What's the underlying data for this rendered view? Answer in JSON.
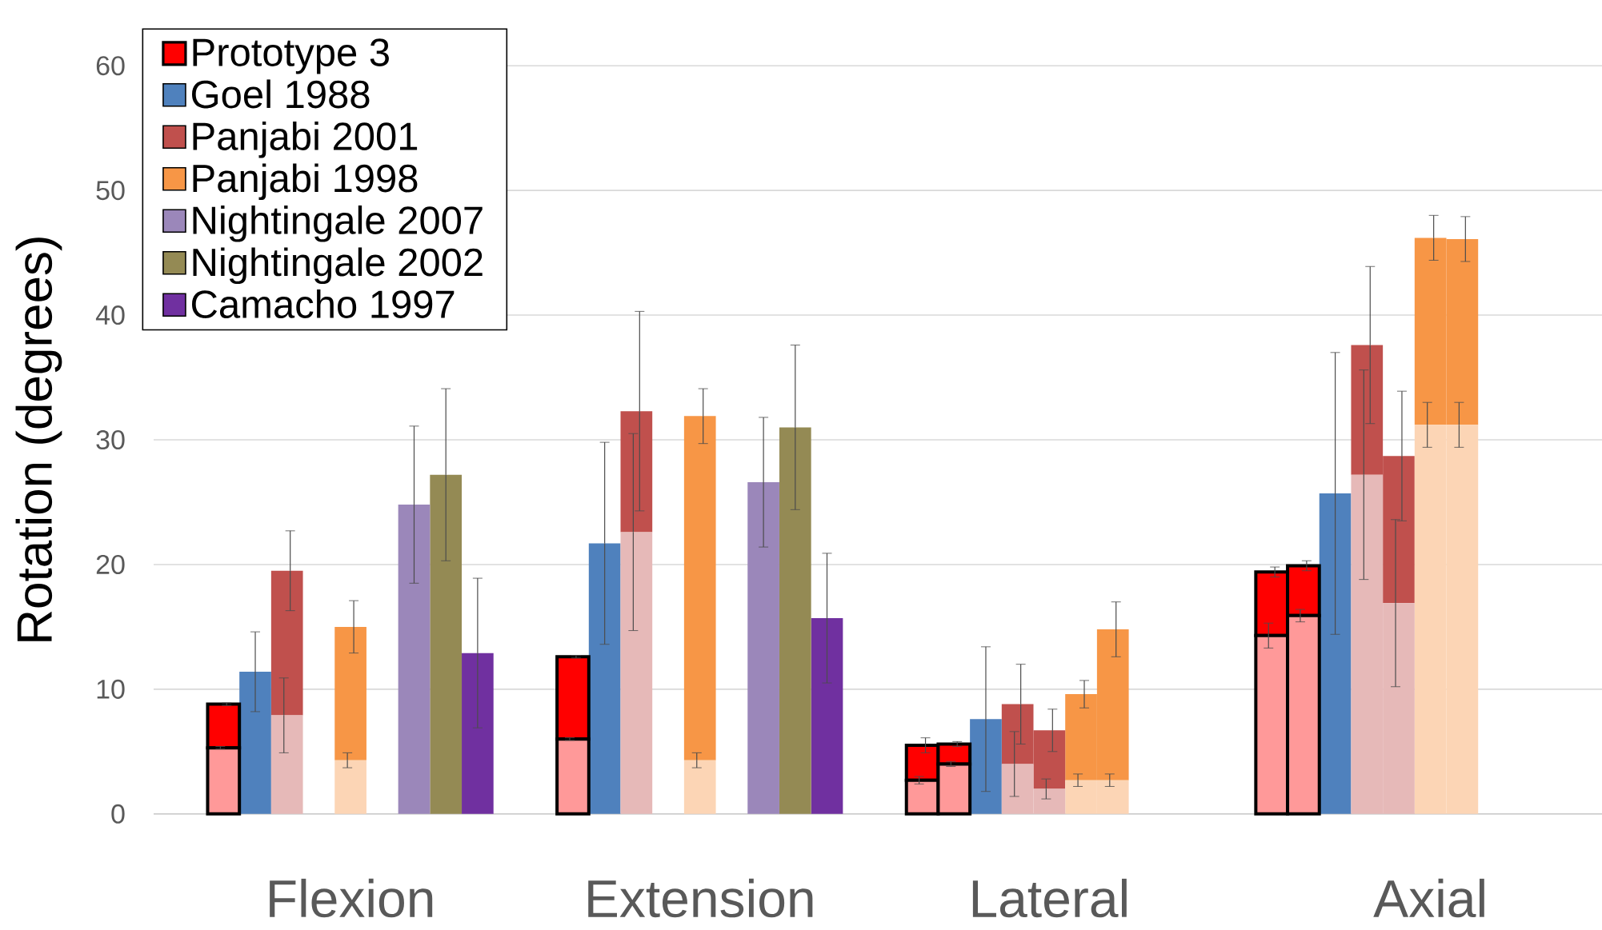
{
  "chart_data": {
    "type": "bar",
    "stacked": true,
    "ylabel": "Rotation (degrees)",
    "categories": [
      null,
      null,
      null,
      null,
      "Flexion",
      null,
      null,
      null,
      null,
      null,
      null,
      null,
      null,
      null,
      null,
      "Extension",
      null,
      null,
      null,
      null,
      null,
      null,
      null,
      null,
      null,
      null,
      "Lateral",
      null,
      null,
      null,
      null,
      null,
      null,
      null,
      null,
      null,
      null,
      null,
      "Axial",
      null
    ],
    "ylim": [
      0,
      60
    ],
    "yticks": [
      0,
      10,
      20,
      30,
      40,
      50,
      60
    ],
    "grid": "y",
    "legend": "top left",
    "series": [
      {
        "color": "#ff9999",
        "values": [
          5.3,
          null,
          null,
          null,
          null,
          null,
          null,
          null,
          null,
          null,
          null,
          6.0,
          null,
          null,
          null,
          null,
          null,
          null,
          null,
          null,
          null,
          null,
          2.7,
          4.0,
          null,
          null,
          null,
          null,
          null,
          null,
          null,
          null,
          null,
          14.3,
          15.9,
          null,
          null,
          null,
          null,
          null
        ],
        "errors": [
          0.1,
          null,
          null,
          null,
          null,
          null,
          null,
          null,
          null,
          null,
          null,
          0.1,
          null,
          null,
          null,
          null,
          null,
          null,
          null,
          null,
          null,
          null,
          0.3,
          0.2,
          null,
          null,
          null,
          null,
          null,
          null,
          null,
          null,
          null,
          1.0,
          0.5,
          null,
          null,
          null,
          null,
          null
        ]
      },
      {
        "color": "#e6b9b8",
        "values": [
          null,
          null,
          7.9,
          null,
          null,
          null,
          null,
          null,
          null,
          null,
          null,
          null,
          null,
          22.6,
          null,
          null,
          null,
          null,
          null,
          null,
          null,
          null,
          null,
          null,
          null,
          4.0,
          2.0,
          null,
          null,
          null,
          null,
          null,
          null,
          null,
          null,
          null,
          27.2,
          16.9,
          null,
          null
        ],
        "errors": [
          null,
          null,
          3.0,
          null,
          null,
          null,
          null,
          null,
          null,
          null,
          null,
          null,
          null,
          7.9,
          null,
          null,
          null,
          null,
          null,
          null,
          null,
          null,
          null,
          null,
          null,
          2.6,
          0.8,
          null,
          null,
          null,
          null,
          null,
          null,
          null,
          null,
          null,
          8.4,
          6.7,
          null,
          null
        ]
      },
      {
        "color": "#fcd5b5",
        "values": [
          null,
          null,
          null,
          null,
          4.3,
          null,
          null,
          null,
          null,
          null,
          null,
          null,
          null,
          null,
          null,
          4.3,
          null,
          null,
          null,
          null,
          null,
          null,
          null,
          null,
          null,
          null,
          null,
          2.7,
          2.7,
          null,
          null,
          null,
          null,
          null,
          null,
          null,
          null,
          null,
          31.2,
          31.2
        ],
        "errors": [
          null,
          null,
          null,
          null,
          0.6,
          null,
          null,
          null,
          null,
          null,
          null,
          null,
          null,
          null,
          null,
          0.6,
          null,
          null,
          null,
          null,
          null,
          null,
          null,
          null,
          null,
          null,
          null,
          0.5,
          0.5,
          null,
          null,
          null,
          null,
          null,
          null,
          null,
          null,
          null,
          1.8,
          1.8
        ]
      },
      {
        "name": "Prototype 3",
        "color": "#ff0000",
        "values": [
          3.5,
          null,
          null,
          null,
          null,
          null,
          null,
          null,
          null,
          null,
          null,
          6.6,
          null,
          null,
          null,
          null,
          null,
          null,
          null,
          null,
          null,
          null,
          2.8,
          1.6,
          null,
          null,
          null,
          null,
          null,
          null,
          null,
          null,
          null,
          5.1,
          4.0,
          null,
          null,
          null,
          null,
          null
        ],
        "errors": [
          0.1,
          null,
          null,
          null,
          null,
          null,
          null,
          null,
          null,
          null,
          null,
          0.1,
          null,
          null,
          null,
          null,
          null,
          null,
          null,
          null,
          null,
          null,
          0.6,
          0.2,
          null,
          null,
          null,
          null,
          null,
          null,
          null,
          null,
          null,
          0.4,
          0.4,
          null,
          null,
          null,
          null,
          null
        ]
      },
      {
        "name": "Goel 1988",
        "color": "#4f81bd",
        "values": [
          null,
          11.4,
          null,
          null,
          null,
          null,
          null,
          null,
          null,
          null,
          null,
          null,
          21.7,
          null,
          null,
          null,
          null,
          null,
          null,
          null,
          null,
          null,
          null,
          null,
          7.6,
          null,
          null,
          null,
          null,
          null,
          null,
          null,
          null,
          null,
          null,
          25.7,
          null,
          null,
          null,
          null
        ],
        "errors": [
          null,
          3.2,
          null,
          null,
          null,
          null,
          null,
          null,
          null,
          null,
          null,
          null,
          8.1,
          null,
          null,
          null,
          null,
          null,
          null,
          null,
          null,
          null,
          null,
          null,
          5.8,
          null,
          null,
          null,
          null,
          null,
          null,
          null,
          null,
          null,
          null,
          11.3,
          null,
          null,
          null,
          null
        ]
      },
      {
        "name": "Panjabi 2001",
        "color": "#c0504d",
        "values": [
          null,
          null,
          11.6,
          null,
          null,
          null,
          null,
          null,
          null,
          null,
          null,
          null,
          null,
          9.7,
          null,
          null,
          null,
          null,
          null,
          null,
          null,
          null,
          null,
          null,
          null,
          4.8,
          4.7,
          null,
          null,
          null,
          null,
          null,
          null,
          null,
          null,
          null,
          10.4,
          11.8,
          null,
          null
        ],
        "errors": [
          null,
          null,
          3.2,
          null,
          null,
          null,
          null,
          null,
          null,
          null,
          null,
          null,
          null,
          8.0,
          null,
          null,
          null,
          null,
          null,
          null,
          null,
          null,
          null,
          null,
          null,
          3.2,
          1.7,
          null,
          null,
          null,
          null,
          null,
          null,
          null,
          null,
          null,
          6.3,
          5.2,
          null,
          null
        ]
      },
      {
        "name": "Panjabi 1998",
        "color": "#f79646",
        "values": [
          null,
          null,
          null,
          null,
          10.7,
          null,
          null,
          null,
          null,
          null,
          null,
          null,
          null,
          null,
          null,
          27.6,
          null,
          null,
          null,
          null,
          null,
          null,
          null,
          null,
          null,
          null,
          null,
          6.9,
          12.1,
          null,
          null,
          null,
          null,
          null,
          null,
          null,
          null,
          null,
          15.0,
          14.9
        ],
        "errors": [
          null,
          null,
          null,
          null,
          2.1,
          null,
          null,
          null,
          null,
          null,
          null,
          null,
          null,
          null,
          null,
          2.2,
          null,
          null,
          null,
          null,
          null,
          null,
          null,
          null,
          null,
          null,
          null,
          1.1,
          2.2,
          null,
          null,
          null,
          null,
          null,
          null,
          null,
          null,
          null,
          1.8,
          1.8
        ]
      },
      {
        "name": "Nightingale 2007",
        "color": "#9b87ba",
        "values": [
          null,
          null,
          null,
          null,
          null,
          null,
          24.8,
          null,
          null,
          null,
          null,
          null,
          null,
          null,
          null,
          null,
          null,
          26.6,
          null,
          null,
          null,
          null,
          null,
          null,
          null,
          null,
          null,
          null,
          null,
          null,
          null,
          null,
          null,
          null,
          null,
          null,
          null,
          null,
          null,
          null
        ],
        "errors": [
          null,
          null,
          null,
          null,
          null,
          null,
          6.3,
          null,
          null,
          null,
          null,
          null,
          null,
          null,
          null,
          null,
          null,
          5.2,
          null,
          null,
          null,
          null,
          null,
          null,
          null,
          null,
          null,
          null,
          null,
          null,
          null,
          null,
          null,
          null,
          null,
          null,
          null,
          null,
          null,
          null
        ]
      },
      {
        "name": "Nightingale 2002",
        "color": "#948a54",
        "values": [
          null,
          null,
          null,
          null,
          null,
          null,
          null,
          27.2,
          null,
          null,
          null,
          null,
          null,
          null,
          null,
          null,
          null,
          null,
          31.0,
          null,
          null,
          null,
          null,
          null,
          null,
          null,
          null,
          null,
          null,
          null,
          null,
          null,
          null,
          null,
          null,
          null,
          null,
          null,
          null,
          null
        ],
        "errors": [
          null,
          null,
          null,
          null,
          null,
          null,
          null,
          6.9,
          null,
          null,
          null,
          null,
          null,
          null,
          null,
          null,
          null,
          null,
          6.6,
          null,
          null,
          null,
          null,
          null,
          null,
          null,
          null,
          null,
          null,
          null,
          null,
          null,
          null,
          null,
          null,
          null,
          null,
          null,
          null,
          null
        ]
      },
      {
        "name": "Camacho 1997",
        "color": "#7030a0",
        "values": [
          null,
          null,
          null,
          null,
          null,
          null,
          null,
          null,
          12.9,
          null,
          null,
          null,
          null,
          null,
          null,
          null,
          null,
          null,
          null,
          15.7,
          null,
          null,
          null,
          null,
          null,
          null,
          null,
          null,
          null,
          null,
          null,
          null,
          null,
          null,
          null,
          null,
          null,
          null,
          null,
          null
        ],
        "errors": [
          null,
          null,
          null,
          null,
          null,
          null,
          null,
          null,
          6.0,
          null,
          null,
          null,
          null,
          null,
          null,
          null,
          null,
          null,
          null,
          5.2,
          null,
          null,
          null,
          null,
          null,
          null,
          null,
          null,
          null,
          null,
          null,
          null,
          null,
          null,
          null,
          null,
          null,
          null,
          null,
          null
        ]
      }
    ]
  }
}
